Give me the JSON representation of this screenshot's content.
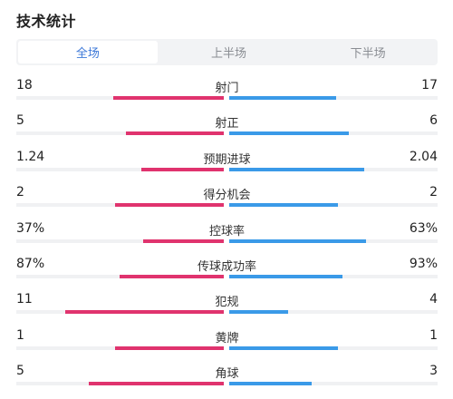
{
  "header": {
    "title": "技术统计"
  },
  "tabs": [
    {
      "label": "全场",
      "active": true
    },
    {
      "label": "上半场",
      "active": false
    },
    {
      "label": "下半场",
      "active": false
    }
  ],
  "colors": {
    "home_bar": "#e0336e",
    "away_bar": "#3a9ae8",
    "active_tab_text": "#3c78d8"
  },
  "stats": [
    {
      "label": "射门",
      "home": "18",
      "away": "17",
      "home_share": 0.51,
      "away_share": 0.49
    },
    {
      "label": "射正",
      "home": "5",
      "away": "6",
      "home_share": 0.45,
      "away_share": 0.55
    },
    {
      "label": "预期进球",
      "home": "1.24",
      "away": "2.04",
      "home_share": 0.38,
      "away_share": 0.62
    },
    {
      "label": "得分机会",
      "home": "2",
      "away": "2",
      "home_share": 0.5,
      "away_share": 0.5
    },
    {
      "label": "控球率",
      "home": "37%",
      "away": "63%",
      "home_share": 0.37,
      "away_share": 0.63
    },
    {
      "label": "传球成功率",
      "home": "87%",
      "away": "93%",
      "home_share": 0.48,
      "away_share": 0.52
    },
    {
      "label": "犯规",
      "home": "11",
      "away": "4",
      "home_share": 0.73,
      "away_share": 0.27
    },
    {
      "label": "黄牌",
      "home": "1",
      "away": "1",
      "home_share": 0.5,
      "away_share": 0.5
    },
    {
      "label": "角球",
      "home": "5",
      "away": "3",
      "home_share": 0.62,
      "away_share": 0.38
    }
  ]
}
